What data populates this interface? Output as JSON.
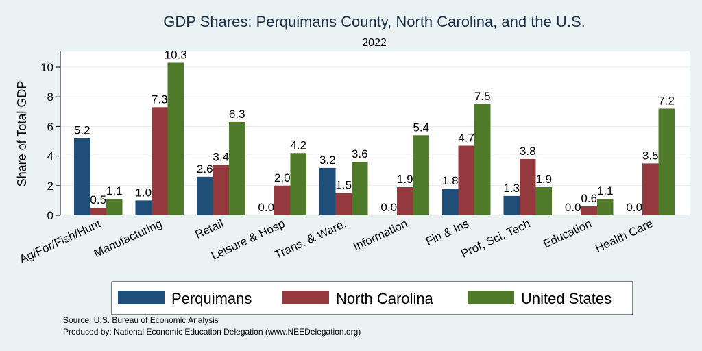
{
  "chart_data": {
    "type": "bar",
    "title": "GDP Shares: Perquimans County, North Carolina, and the U.S.",
    "subtitle": "2022",
    "xlabel": "",
    "ylabel": "Share of Total GDP",
    "ylim": [
      0,
      11
    ],
    "yticks": [
      0,
      2,
      4,
      6,
      8,
      10
    ],
    "grid": true,
    "categories": [
      "Ag/For/Fish/Hunt",
      "Manufacturing",
      "Retail",
      "Leisure & Hosp",
      "Trans. & Ware.",
      "Information",
      "Fin & Ins",
      "Prof, Sci, Tech",
      "Education",
      "Health Care"
    ],
    "series": [
      {
        "name": "Perquimans",
        "color": "#1f4e79",
        "values": [
          5.2,
          1.0,
          2.6,
          0.0,
          3.2,
          0.0,
          1.8,
          1.3,
          0.0,
          0.0
        ]
      },
      {
        "name": "North Carolina",
        "color": "#943a3e",
        "values": [
          0.5,
          7.3,
          3.4,
          2.0,
          1.5,
          1.9,
          4.7,
          3.8,
          0.6,
          3.5
        ]
      },
      {
        "name": "United States",
        "color": "#4f7a2a",
        "values": [
          1.1,
          10.3,
          6.3,
          4.2,
          3.6,
          5.4,
          7.5,
          1.9,
          1.1,
          7.2
        ]
      }
    ],
    "legend_position": "bottom",
    "source_lines": [
      "Source: U.S. Bureau of Economic Analysis",
      "Produced by: National Economic Education Delegation (www.NEEDelegation.org)"
    ]
  }
}
